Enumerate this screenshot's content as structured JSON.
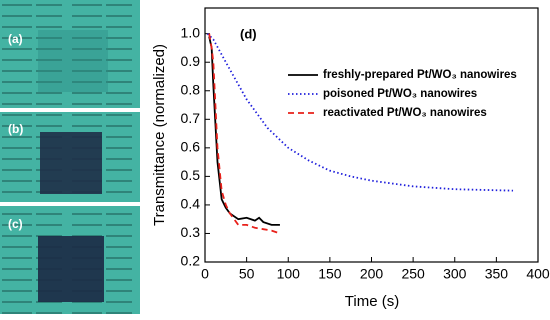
{
  "panel_labels": [
    "(a)",
    "(b)",
    "(c)"
  ],
  "chart_data": {
    "type": "line",
    "annotation": "(d)",
    "x_label": "Time (s)",
    "y_label": "Transmittance (normalized)",
    "xlim": [
      0,
      400
    ],
    "xticks": [
      0,
      50,
      100,
      150,
      200,
      250,
      300,
      350,
      400
    ],
    "ylim": [
      0.2,
      1.09
    ],
    "yticks": [
      0.2,
      0.3,
      0.4,
      0.5,
      0.6,
      0.7,
      0.8,
      0.9,
      {
        "value": 1.0,
        "label": "1.0"
      }
    ],
    "legend": "upper right",
    "series": [
      {
        "name": "freshly-prepared Pt/WO₃ nanowires",
        "color": "#000000",
        "dash": "solid",
        "x": [
          5,
          8,
          10,
          15,
          20,
          25,
          30,
          40,
          50,
          60,
          65,
          70,
          80,
          90
        ],
        "values": [
          0.99,
          0.95,
          0.82,
          0.55,
          0.42,
          0.39,
          0.37,
          0.35,
          0.355,
          0.345,
          0.355,
          0.34,
          0.33,
          0.33
        ]
      },
      {
        "name": "poisoned Pt/WO₃ nanowires",
        "color": "#1f1fdc",
        "dash": "dotted",
        "x": [
          3,
          10,
          25,
          50,
          75,
          100,
          125,
          150,
          175,
          200,
          250,
          300,
          370
        ],
        "values": [
          1.0,
          0.98,
          0.9,
          0.77,
          0.67,
          0.6,
          0.555,
          0.52,
          0.5,
          0.485,
          0.465,
          0.455,
          0.45
        ]
      },
      {
        "name": "reactivated Pt/WO₃ nanowires",
        "color": "#e8201a",
        "dash": "dashed",
        "x": [
          5,
          8,
          10,
          15,
          20,
          25,
          30,
          40,
          50,
          60,
          70,
          80,
          90
        ],
        "values": [
          1.0,
          0.95,
          0.9,
          0.6,
          0.45,
          0.4,
          0.37,
          0.33,
          0.33,
          0.32,
          0.315,
          0.31,
          0.3
        ]
      }
    ]
  }
}
